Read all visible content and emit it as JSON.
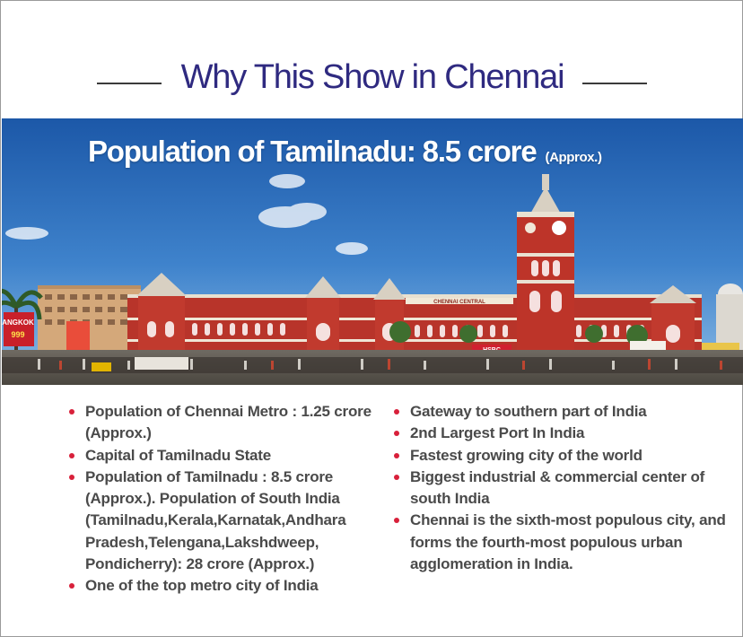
{
  "title": "Why This Show in Chennai",
  "banner": {
    "heading": "Population of Tamilnadu:  8.5 crore",
    "heading_note": "(Approx.)",
    "sign_left_1": "ANGKOK",
    "sign_left_2": "999",
    "sign_building": "CHENNAI CENTRAL",
    "sign_bank": "HSBC"
  },
  "bullets_left": [
    "Population of  Chennai Metro : 1.25 crore (Approx.)",
    "Capital of Tamilnadu State",
    "Population of Tamilnadu : 8.5 crore (Approx.). Population of South India (Tamilnadu,Kerala,Karnatak,Andhara Pradesh,Telengana,Lakshdweep, Pondicherry):  28 crore (Approx.)",
    "One of the top metro city of India"
  ],
  "bullets_right": [
    "Gateway to southern part of  India",
    "2nd Largest Port In India",
    "Fastest growing city of the world",
    "Biggest industrial & commercial center of south India",
    "Chennai is the sixth-most populous city, and forms the fourth-most populous urban agglomeration in India."
  ],
  "colors": {
    "title": "#2f2a80",
    "bullet_dot": "#d8203a",
    "bullet_text": "#4a4a4a",
    "sky_top": "#1f5fae",
    "sky_bottom": "#6aa6dc",
    "building": "#c0392b"
  }
}
